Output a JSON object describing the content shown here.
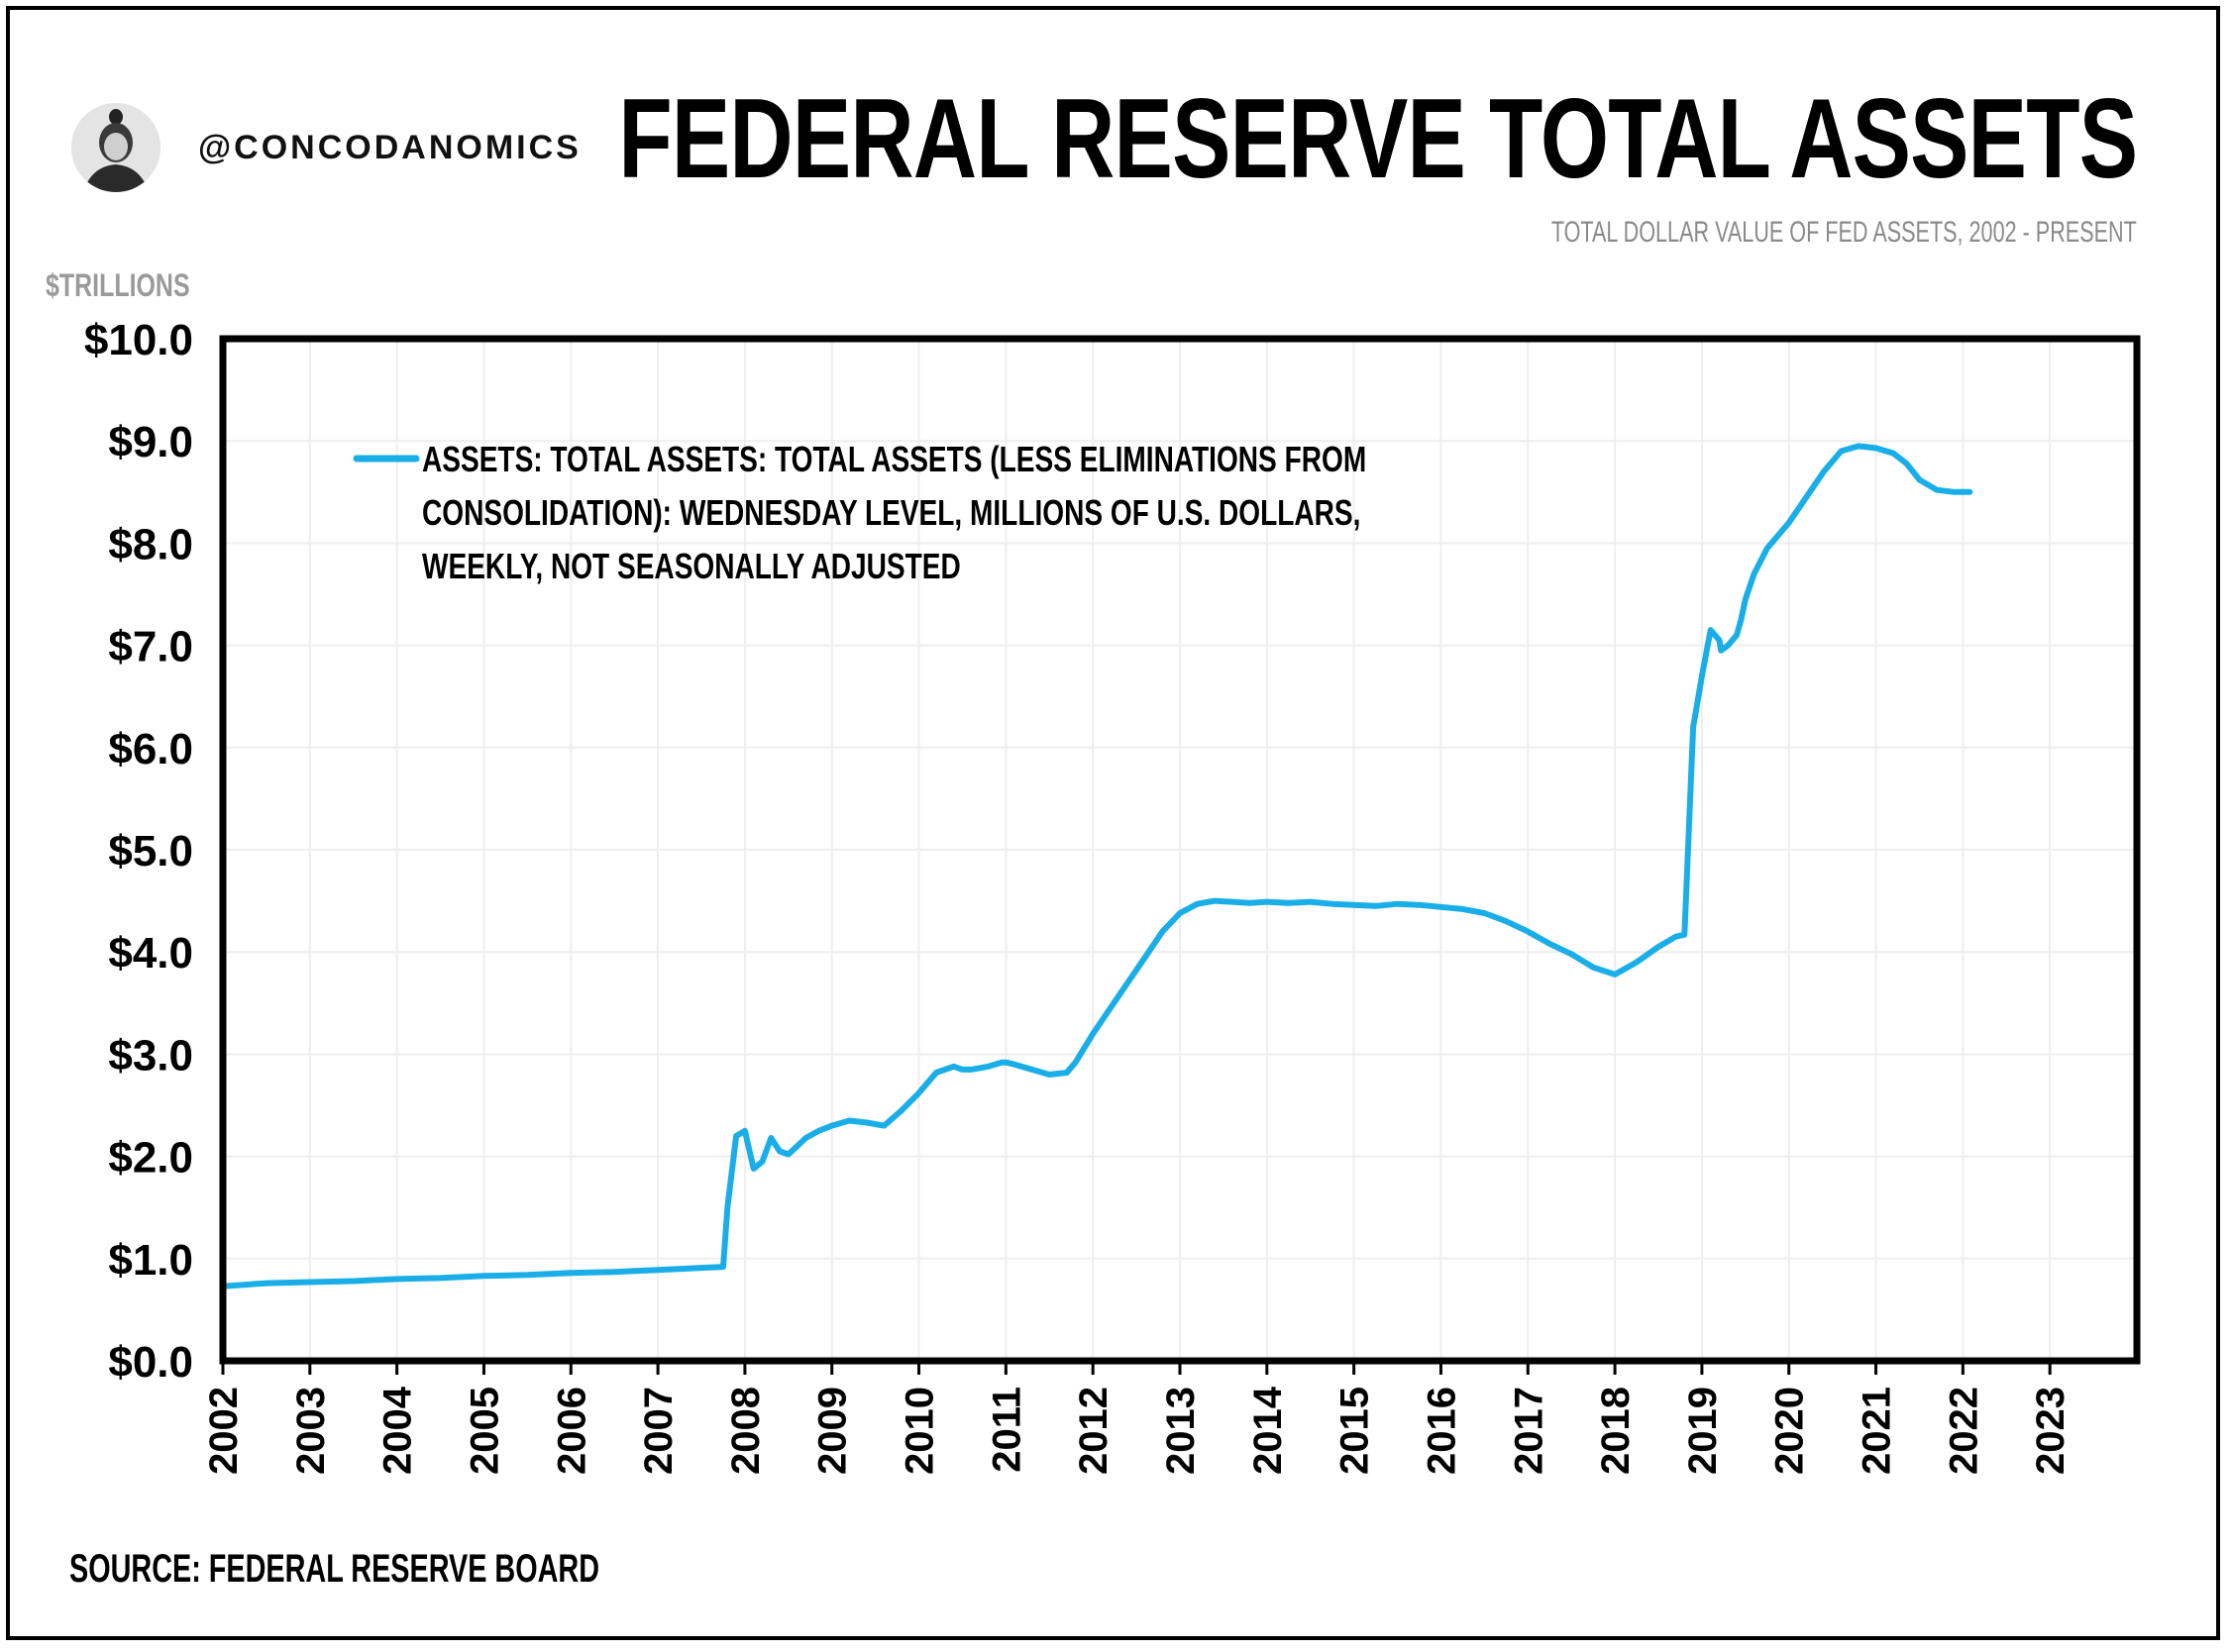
{
  "header": {
    "handle": "@CONCODANOMICS",
    "title": "FEDERAL RESERVE TOTAL ASSETS",
    "subtitle": "TOTAL DOLLAR VALUE OF FED ASSETS, 2002 - PRESENT"
  },
  "footer": {
    "source": "SOURCE: FEDERAL RESERVE BOARD"
  },
  "colors": {
    "series": "#1aaee8",
    "frame": "#000000",
    "grid": "#eeeeee",
    "unit_label": "#9a9a9a",
    "subtitle": "#8a8a8a"
  },
  "chart_data": {
    "type": "line",
    "ylabel": "$TRILLIONS",
    "xlim": [
      2002,
      2024
    ],
    "ylim": [
      0,
      10
    ],
    "y_ticks": [
      {
        "value": 0,
        "label": "$0.0"
      },
      {
        "value": 1,
        "label": "$1.0"
      },
      {
        "value": 2,
        "label": "$2.0"
      },
      {
        "value": 3,
        "label": "$3.0"
      },
      {
        "value": 4,
        "label": "$4.0"
      },
      {
        "value": 5,
        "label": "$5.0"
      },
      {
        "value": 6,
        "label": "$6.0"
      },
      {
        "value": 7,
        "label": "$7.0"
      },
      {
        "value": 8,
        "label": "$8.0"
      },
      {
        "value": 9,
        "label": "$9.0"
      },
      {
        "value": 10,
        "label": "$10.0"
      }
    ],
    "x_ticks": [
      {
        "value": 2002,
        "label": "2002"
      },
      {
        "value": 2003,
        "label": "2003"
      },
      {
        "value": 2004,
        "label": "2004"
      },
      {
        "value": 2005,
        "label": "2005"
      },
      {
        "value": 2006,
        "label": "2006"
      },
      {
        "value": 2007,
        "label": "2007"
      },
      {
        "value": 2008,
        "label": "2008"
      },
      {
        "value": 2009,
        "label": "2009"
      },
      {
        "value": 2010,
        "label": "2010"
      },
      {
        "value": 2011,
        "label": "2011"
      },
      {
        "value": 2012,
        "label": "2012"
      },
      {
        "value": 2013,
        "label": "2013"
      },
      {
        "value": 2014,
        "label": "2014"
      },
      {
        "value": 2015,
        "label": "2015"
      },
      {
        "value": 2016,
        "label": "2016"
      },
      {
        "value": 2017,
        "label": "2017"
      },
      {
        "value": 2018,
        "label": "2018"
      },
      {
        "value": 2019,
        "label": "2019"
      },
      {
        "value": 2020,
        "label": "2020"
      },
      {
        "value": 2021,
        "label": "2021"
      },
      {
        "value": 2022,
        "label": "2022"
      },
      {
        "value": 2023,
        "label": "2023"
      }
    ],
    "grid": true,
    "legend_position": "top-left",
    "series": [
      {
        "name": "ASSETS: TOTAL ASSETS: TOTAL ASSETS (LESS ELIMINATIONS FROM CONSOLIDATION): WEDNESDAY LEVEL, MILLIONS OF U.S. DOLLARS, WEEKLY, NOT SEASONALLY ADJUSTED",
        "legend_lines": [
          "ASSETS: TOTAL ASSETS: TOTAL ASSETS (LESS ELIMINATIONS FROM",
          "CONSOLIDATION): WEDNESDAY LEVEL, MILLIONS OF U.S. DOLLARS,",
          "WEEKLY, NOT SEASONALLY ADJUSTED"
        ],
        "color": "#1aaee8",
        "x": [
          2002.0,
          2002.5,
          2003.0,
          2003.5,
          2004.0,
          2004.5,
          2005.0,
          2005.5,
          2006.0,
          2006.5,
          2007.0,
          2007.5,
          2007.75,
          2007.8,
          2007.9,
          2008.0,
          2008.1,
          2008.2,
          2008.3,
          2008.4,
          2008.5,
          2008.6,
          2008.7,
          2008.85,
          2009.0,
          2009.2,
          2009.4,
          2009.6,
          2009.8,
          2010.0,
          2010.2,
          2010.4,
          2010.5,
          2010.6,
          2010.8,
          2010.95,
          2011.0,
          2011.1,
          2011.3,
          2011.5,
          2011.7,
          2011.8,
          2012.0,
          2012.2,
          2012.4,
          2012.6,
          2012.8,
          2013.0,
          2013.2,
          2013.4,
          2013.6,
          2013.8,
          2014.0,
          2014.25,
          2014.5,
          2014.75,
          2015.0,
          2015.25,
          2015.5,
          2015.75,
          2016.0,
          2016.25,
          2016.5,
          2016.75,
          2017.0,
          2017.25,
          2017.5,
          2017.75,
          2018.0,
          2018.25,
          2018.5,
          2018.7,
          2018.8,
          2018.9,
          2019.0,
          2019.1,
          2019.2,
          2019.22,
          2019.3,
          2019.4,
          2019.45,
          2019.5,
          2019.6,
          2019.75,
          2020.0,
          2020.2,
          2020.4,
          2020.6,
          2020.8,
          2021.0,
          2021.2,
          2021.35,
          2021.5,
          2021.7,
          2021.9,
          2022.0,
          2022.08
        ],
        "values": [
          0.73,
          0.76,
          0.77,
          0.78,
          0.8,
          0.81,
          0.83,
          0.84,
          0.86,
          0.87,
          0.89,
          0.91,
          0.92,
          1.5,
          2.2,
          2.25,
          1.88,
          1.95,
          2.18,
          2.05,
          2.02,
          2.1,
          2.18,
          2.25,
          2.3,
          2.35,
          2.33,
          2.3,
          2.45,
          2.62,
          2.82,
          2.88,
          2.85,
          2.85,
          2.88,
          2.92,
          2.92,
          2.9,
          2.85,
          2.8,
          2.82,
          2.92,
          3.2,
          3.45,
          3.7,
          3.95,
          4.2,
          4.38,
          4.47,
          4.5,
          4.49,
          4.48,
          4.49,
          4.48,
          4.49,
          4.47,
          4.46,
          4.45,
          4.47,
          4.46,
          4.44,
          4.42,
          4.38,
          4.3,
          4.2,
          4.08,
          3.98,
          3.85,
          3.78,
          3.9,
          4.05,
          4.15,
          4.17,
          6.2,
          6.7,
          7.15,
          7.05,
          6.95,
          7.0,
          7.1,
          7.25,
          7.45,
          7.7,
          7.95,
          8.2,
          8.45,
          8.7,
          8.9,
          8.95,
          8.93,
          8.88,
          8.78,
          8.62,
          8.52,
          8.5,
          8.5,
          8.5
        ]
      }
    ]
  }
}
